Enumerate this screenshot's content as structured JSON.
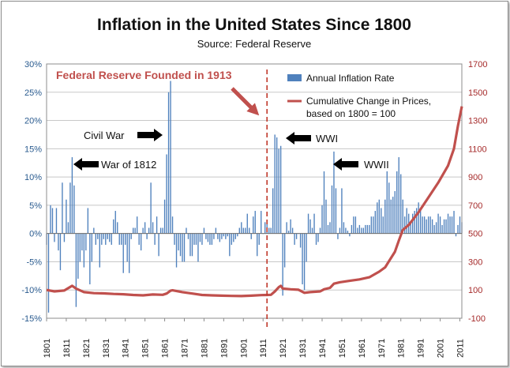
{
  "chart_data": {
    "type": "bar",
    "title": "Inflation in the United States Since 1800",
    "subtitle": "Source: Federal Reserve",
    "xlabel": "",
    "ylabel": "",
    "x_tick_labels": [
      "1801",
      "1811",
      "1821",
      "1831",
      "1841",
      "1851",
      "1861",
      "1871",
      "1881",
      "1891",
      "1901",
      "1911",
      "1921",
      "1931",
      "1941",
      "1951",
      "1961",
      "1971",
      "1981",
      "1991",
      "2001",
      "2011"
    ],
    "x_range": [
      1801,
      2012
    ],
    "y_left": {
      "ticks": [
        "-15%",
        "-10%",
        "-5%",
        "0%",
        "5%",
        "10%",
        "15%",
        "20%",
        "25%",
        "30%"
      ],
      "range": [
        -15,
        30
      ]
    },
    "y_right": {
      "ticks": [
        "-100",
        "100",
        "300",
        "500",
        "700",
        "900",
        "1100",
        "1300",
        "1500",
        "1700"
      ],
      "range": [
        -100,
        1700
      ]
    },
    "grid": true,
    "legend_position": "top-right",
    "colors": {
      "bars": "#4f81bd",
      "line": "#c0504d",
      "fed_line": "#c0392b",
      "arrow": "#000000",
      "fed_arrow": "#c0504d"
    },
    "series": [
      {
        "name": "Annual Inflation Rate",
        "axis": "left",
        "type": "bar",
        "points": [
          [
            1801,
            -2
          ],
          [
            1802,
            -14
          ],
          [
            1803,
            5
          ],
          [
            1804,
            4.5
          ],
          [
            1805,
            -1.5
          ],
          [
            1806,
            4.5
          ],
          [
            1807,
            -3
          ],
          [
            1808,
            -6.5
          ],
          [
            1809,
            9
          ],
          [
            1810,
            -1.5
          ],
          [
            1811,
            6
          ],
          [
            1812,
            2
          ],
          [
            1813,
            9
          ],
          [
            1814,
            13.5
          ],
          [
            1815,
            8.5
          ],
          [
            1816,
            -13
          ],
          [
            1817,
            -8
          ],
          [
            1818,
            -5
          ],
          [
            1819,
            -3
          ],
          [
            1820,
            -6
          ],
          [
            1821,
            -3
          ],
          [
            1822,
            4.5
          ],
          [
            1823,
            -9
          ],
          [
            1824,
            -5
          ],
          [
            1825,
            1
          ],
          [
            1826,
            -2
          ],
          [
            1827,
            -1
          ],
          [
            1828,
            -6
          ],
          [
            1829,
            -2
          ],
          [
            1830,
            -1
          ],
          [
            1831,
            -2
          ],
          [
            1832,
            -1
          ],
          [
            1833,
            -1.5
          ],
          [
            1834,
            -2
          ],
          [
            1835,
            2.5
          ],
          [
            1836,
            4
          ],
          [
            1837,
            2
          ],
          [
            1838,
            -2
          ],
          [
            1839,
            -2
          ],
          [
            1840,
            -7
          ],
          [
            1841,
            -2
          ],
          [
            1842,
            -5
          ],
          [
            1843,
            -7
          ],
          [
            1844,
            -1
          ],
          [
            1845,
            1
          ],
          [
            1846,
            1
          ],
          [
            1847,
            3
          ],
          [
            1848,
            -2
          ],
          [
            1849,
            -3
          ],
          [
            1850,
            1
          ],
          [
            1851,
            2
          ],
          [
            1852,
            -1
          ],
          [
            1853,
            1
          ],
          [
            1854,
            9
          ],
          [
            1855,
            2
          ],
          [
            1856,
            -2
          ],
          [
            1857,
            3
          ],
          [
            1858,
            -4
          ],
          [
            1859,
            1
          ],
          [
            1860,
            1
          ],
          [
            1861,
            6
          ],
          [
            1862,
            14
          ],
          [
            1863,
            25
          ],
          [
            1864,
            27
          ],
          [
            1865,
            3
          ],
          [
            1866,
            -2
          ],
          [
            1867,
            -6
          ],
          [
            1868,
            -3
          ],
          [
            1869,
            -4
          ],
          [
            1870,
            -5
          ],
          [
            1871,
            -5
          ],
          [
            1872,
            1
          ],
          [
            1873,
            -1
          ],
          [
            1874,
            -4
          ],
          [
            1875,
            -4
          ],
          [
            1876,
            -2
          ],
          [
            1877,
            -2
          ],
          [
            1878,
            -5
          ],
          [
            1879,
            -1.5
          ],
          [
            1880,
            -2
          ],
          [
            1881,
            1
          ],
          [
            1882,
            -1
          ],
          [
            1883,
            -1.5
          ],
          [
            1884,
            -2
          ],
          [
            1885,
            -2
          ],
          [
            1886,
            -1
          ],
          [
            1887,
            1
          ],
          [
            1888,
            -1
          ],
          [
            1889,
            -1.5
          ],
          [
            1890,
            -1
          ],
          [
            1891,
            -0.5
          ],
          [
            1892,
            -1
          ],
          [
            1893,
            -0.5
          ],
          [
            1894,
            -4
          ],
          [
            1895,
            -2
          ],
          [
            1896,
            -1.5
          ],
          [
            1897,
            -1
          ],
          [
            1898,
            -0.5
          ],
          [
            1899,
            1
          ],
          [
            1900,
            2
          ],
          [
            1901,
            1
          ],
          [
            1902,
            1
          ],
          [
            1903,
            3.5
          ],
          [
            1904,
            1
          ],
          [
            1905,
            -1
          ],
          [
            1906,
            3
          ],
          [
            1907,
            4
          ],
          [
            1908,
            -4
          ],
          [
            1909,
            -2
          ],
          [
            1910,
            4
          ],
          [
            1911,
            0
          ],
          [
            1912,
            2
          ],
          [
            1913,
            2
          ],
          [
            1914,
            1
          ],
          [
            1915,
            1
          ],
          [
            1916,
            8
          ],
          [
            1917,
            17.5
          ],
          [
            1918,
            17
          ],
          [
            1919,
            15
          ],
          [
            1920,
            15.5
          ],
          [
            1921,
            -11
          ],
          [
            1922,
            -6
          ],
          [
            1923,
            2
          ],
          [
            1924,
            0.5
          ],
          [
            1925,
            2.5
          ],
          [
            1926,
            1
          ],
          [
            1927,
            -2
          ],
          [
            1928,
            -1
          ],
          [
            1929,
            0
          ],
          [
            1930,
            -2.5
          ],
          [
            1931,
            -9
          ],
          [
            1932,
            -10
          ],
          [
            1933,
            -5
          ],
          [
            1934,
            3.5
          ],
          [
            1935,
            2.5
          ],
          [
            1936,
            1
          ],
          [
            1937,
            3.5
          ],
          [
            1938,
            -2
          ],
          [
            1939,
            -1.5
          ],
          [
            1940,
            1
          ],
          [
            1941,
            5
          ],
          [
            1942,
            11
          ],
          [
            1943,
            6
          ],
          [
            1944,
            1.5
          ],
          [
            1945,
            2
          ],
          [
            1946,
            8.5
          ],
          [
            1947,
            14.5
          ],
          [
            1948,
            8
          ],
          [
            1949,
            -1
          ],
          [
            1950,
            1
          ],
          [
            1951,
            8
          ],
          [
            1952,
            2
          ],
          [
            1953,
            1
          ],
          [
            1954,
            0.5
          ],
          [
            1955,
            -0.5
          ],
          [
            1956,
            1.5
          ],
          [
            1957,
            3
          ],
          [
            1958,
            3
          ],
          [
            1959,
            1
          ],
          [
            1960,
            1.5
          ],
          [
            1961,
            1
          ],
          [
            1962,
            1
          ],
          [
            1963,
            1.5
          ],
          [
            1964,
            1.5
          ],
          [
            1965,
            1.5
          ],
          [
            1966,
            3
          ],
          [
            1967,
            3
          ],
          [
            1968,
            4
          ],
          [
            1969,
            5.5
          ],
          [
            1970,
            6
          ],
          [
            1971,
            4.5
          ],
          [
            1972,
            3
          ],
          [
            1973,
            6
          ],
          [
            1974,
            11
          ],
          [
            1975,
            9
          ],
          [
            1976,
            6
          ],
          [
            1977,
            6.5
          ],
          [
            1978,
            7.5
          ],
          [
            1979,
            11
          ],
          [
            1980,
            13.5
          ],
          [
            1981,
            10.5
          ],
          [
            1982,
            6
          ],
          [
            1983,
            3
          ],
          [
            1984,
            4.5
          ],
          [
            1985,
            3.5
          ],
          [
            1986,
            2
          ],
          [
            1987,
            3.5
          ],
          [
            1988,
            4
          ],
          [
            1989,
            4.5
          ],
          [
            1990,
            5.5
          ],
          [
            1991,
            4.5
          ],
          [
            1992,
            3
          ],
          [
            1993,
            3
          ],
          [
            1994,
            2.5
          ],
          [
            1995,
            3
          ],
          [
            1996,
            3
          ],
          [
            1997,
            2.5
          ],
          [
            1998,
            1.5
          ],
          [
            1999,
            2
          ],
          [
            2000,
            3.5
          ],
          [
            2001,
            3
          ],
          [
            2002,
            1.5
          ],
          [
            2003,
            2.5
          ],
          [
            2004,
            2.5
          ],
          [
            2005,
            3.5
          ],
          [
            2006,
            3
          ],
          [
            2007,
            3
          ],
          [
            2008,
            4
          ],
          [
            2009,
            -0.5
          ],
          [
            2010,
            1.5
          ],
          [
            2011,
            3
          ],
          [
            2012,
            2
          ]
        ]
      },
      {
        "name": "Cumulative Change in Prices, based on 1800 = 100",
        "axis": "right",
        "type": "line",
        "points": [
          [
            1801,
            100
          ],
          [
            1805,
            90
          ],
          [
            1810,
            96
          ],
          [
            1814,
            130
          ],
          [
            1816,
            110
          ],
          [
            1820,
            85
          ],
          [
            1825,
            78
          ],
          [
            1830,
            76
          ],
          [
            1835,
            72
          ],
          [
            1840,
            70
          ],
          [
            1845,
            65
          ],
          [
            1850,
            62
          ],
          [
            1855,
            68
          ],
          [
            1860,
            66
          ],
          [
            1862,
            75
          ],
          [
            1864,
            95
          ],
          [
            1865,
            98
          ],
          [
            1870,
            85
          ],
          [
            1875,
            75
          ],
          [
            1880,
            65
          ],
          [
            1885,
            62
          ],
          [
            1890,
            60
          ],
          [
            1895,
            58
          ],
          [
            1900,
            57
          ],
          [
            1905,
            60
          ],
          [
            1910,
            64
          ],
          [
            1913,
            65
          ],
          [
            1915,
            66
          ],
          [
            1917,
            90
          ],
          [
            1919,
            120
          ],
          [
            1920,
            130
          ],
          [
            1921,
            110
          ],
          [
            1925,
            105
          ],
          [
            1929,
            102
          ],
          [
            1932,
            80
          ],
          [
            1935,
            85
          ],
          [
            1940,
            90
          ],
          [
            1942,
            105
          ],
          [
            1945,
            115
          ],
          [
            1947,
            145
          ],
          [
            1950,
            155
          ],
          [
            1955,
            165
          ],
          [
            1960,
            175
          ],
          [
            1965,
            190
          ],
          [
            1970,
            230
          ],
          [
            1973,
            260
          ],
          [
            1975,
            305
          ],
          [
            1978,
            370
          ],
          [
            1980,
            450
          ],
          [
            1982,
            525
          ],
          [
            1985,
            560
          ],
          [
            1990,
            650
          ],
          [
            1995,
            755
          ],
          [
            2000,
            860
          ],
          [
            2005,
            980
          ],
          [
            2008,
            1100
          ],
          [
            2010,
            1260
          ],
          [
            2012,
            1400
          ]
        ]
      }
    ],
    "annotations": [
      {
        "text": "Federal Reserve Founded in 1913",
        "year": 1913,
        "kind": "vertical-dashed-line"
      },
      {
        "text": "Civil War",
        "year": 1864
      },
      {
        "text": "War of 1812",
        "year": 1813
      },
      {
        "text": "WWI",
        "year": 1918
      },
      {
        "text": "WWII",
        "year": 1946
      }
    ]
  }
}
